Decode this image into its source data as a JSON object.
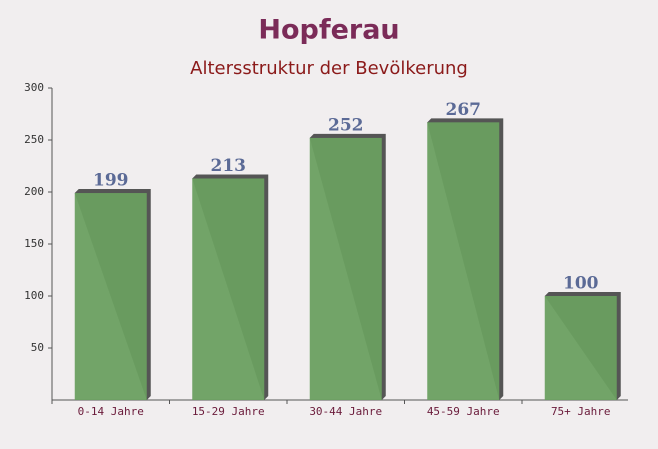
{
  "chart_data": {
    "type": "bar",
    "title": "Hopferau",
    "subtitle": "Altersstruktur der Bevölkerung",
    "categories": [
      "0-14 Jahre",
      "15-29 Jahre",
      "30-44 Jahre",
      "45-59 Jahre",
      "75+ Jahre"
    ],
    "values": [
      199,
      213,
      252,
      267,
      100
    ],
    "color": "#6a9f60",
    "ylim": [
      0,
      300
    ],
    "yticks": [
      50,
      100,
      150,
      200,
      250,
      300
    ]
  }
}
